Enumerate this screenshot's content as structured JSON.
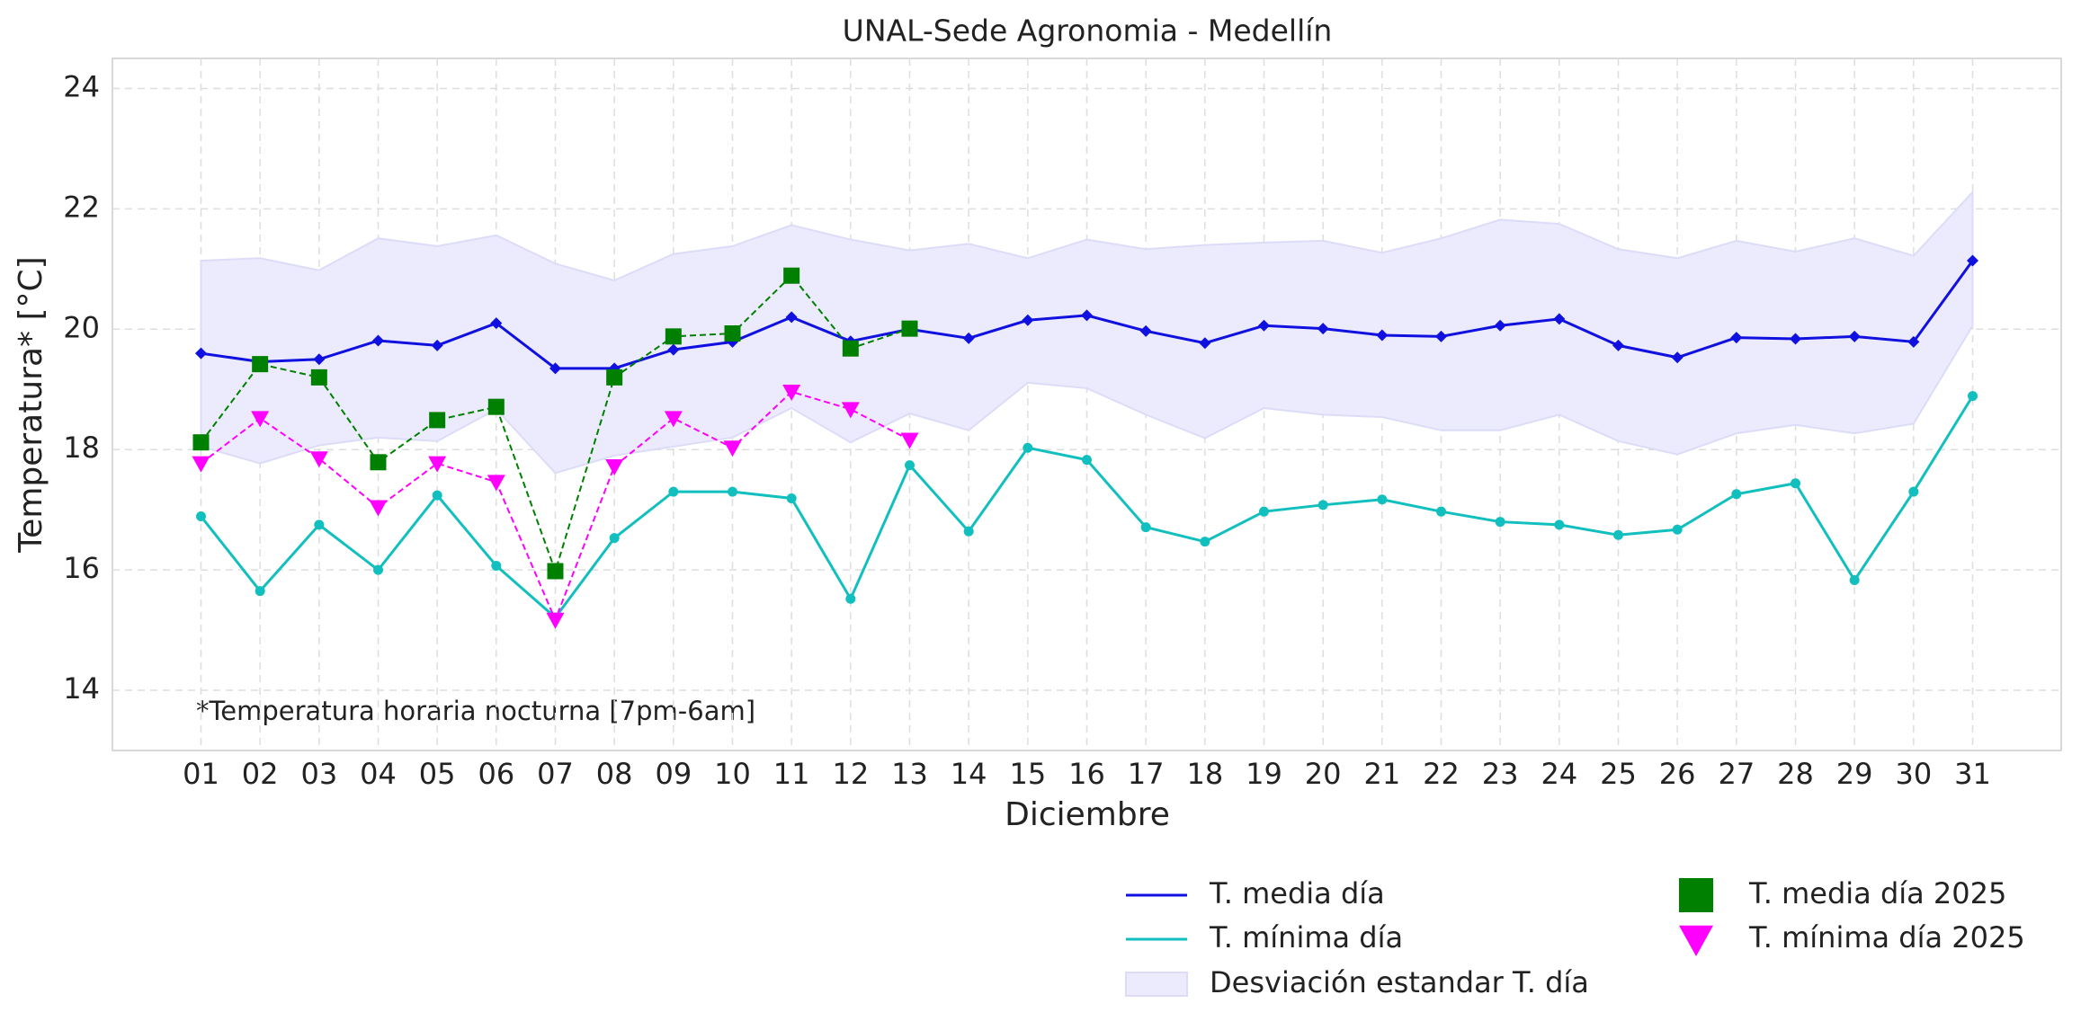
{
  "chart_data": {
    "type": "line",
    "title": "UNAL-Sede Agronomia - Medellín",
    "xlabel": "Diciembre",
    "ylabel": "Temperatura* [°C]",
    "annotation": "*Temperatura horaria nocturna [7pm-6am]",
    "categories": [
      "01",
      "02",
      "03",
      "04",
      "05",
      "06",
      "07",
      "08",
      "09",
      "10",
      "11",
      "12",
      "13",
      "14",
      "15",
      "16",
      "17",
      "18",
      "19",
      "20",
      "21",
      "22",
      "23",
      "24",
      "25",
      "26",
      "27",
      "28",
      "29",
      "30",
      "31"
    ],
    "ylim": [
      13,
      24.5
    ],
    "yticks": [
      14,
      16,
      18,
      20,
      22,
      24
    ],
    "grid": true,
    "band": {
      "name": "Desviación estandar T. día",
      "color": "#ebebfd",
      "upper": [
        21.14,
        21.18,
        20.98,
        21.51,
        21.38,
        21.56,
        21.09,
        20.81,
        21.25,
        21.38,
        21.73,
        21.49,
        21.31,
        21.42,
        21.18,
        21.49,
        21.33,
        21.4,
        21.44,
        21.47,
        21.27,
        21.51,
        21.82,
        21.75,
        21.33,
        21.18,
        21.47,
        21.29,
        21.51,
        21.22,
        22.28
      ],
      "lower": [
        18.05,
        17.77,
        18.07,
        18.2,
        18.14,
        18.67,
        17.61,
        17.9,
        18.05,
        18.2,
        18.69,
        18.12,
        18.6,
        18.32,
        19.11,
        19.02,
        18.58,
        18.19,
        18.69,
        18.58,
        18.54,
        18.32,
        18.32,
        18.58,
        18.14,
        17.92,
        18.27,
        18.41,
        18.27,
        18.43,
        20.06
      ]
    },
    "series": [
      {
        "name": "T. media día",
        "color": "#1010e0",
        "marker": "diamond",
        "linestyle": "solid",
        "values": [
          19.6,
          19.46,
          19.5,
          19.81,
          19.73,
          20.1,
          19.35,
          19.35,
          19.66,
          19.79,
          20.2,
          19.8,
          20.0,
          19.85,
          20.15,
          20.23,
          19.97,
          19.77,
          20.06,
          20.01,
          19.9,
          19.88,
          20.06,
          20.17,
          19.73,
          19.53,
          19.86,
          19.84,
          19.88,
          19.79,
          21.14
        ]
      },
      {
        "name": "T. mínima día",
        "color": "#12bfbf",
        "marker": "circle",
        "linestyle": "solid",
        "values": [
          16.89,
          15.65,
          16.75,
          16.0,
          17.24,
          16.07,
          15.21,
          16.53,
          17.3,
          17.3,
          17.19,
          15.52,
          17.74,
          16.64,
          18.03,
          17.83,
          16.71,
          16.47,
          16.97,
          17.08,
          17.17,
          16.97,
          16.8,
          16.75,
          16.58,
          16.67,
          17.26,
          17.44,
          15.83,
          17.3,
          18.89
        ]
      },
      {
        "name": "T. media día 2025",
        "color": "#008000",
        "marker": "square",
        "linestyle": "dashed",
        "values": [
          18.12,
          19.42,
          19.2,
          17.79,
          18.49,
          18.71,
          15.98,
          19.2,
          19.88,
          19.93,
          20.89,
          19.68,
          20.01,
          null,
          null,
          null,
          null,
          null,
          null,
          null,
          null,
          null,
          null,
          null,
          null,
          null,
          null,
          null,
          null,
          null,
          null
        ]
      },
      {
        "name": "T. mínima día 2025",
        "color": "#ff00ff",
        "marker": "triangle-down",
        "linestyle": "dashed",
        "values": [
          17.77,
          18.52,
          17.85,
          17.04,
          17.77,
          17.46,
          15.17,
          17.72,
          18.52,
          18.03,
          18.96,
          18.67,
          18.16,
          null,
          null,
          null,
          null,
          null,
          null,
          null,
          null,
          null,
          null,
          null,
          null,
          null,
          null,
          null,
          null,
          null,
          null
        ]
      }
    ]
  }
}
